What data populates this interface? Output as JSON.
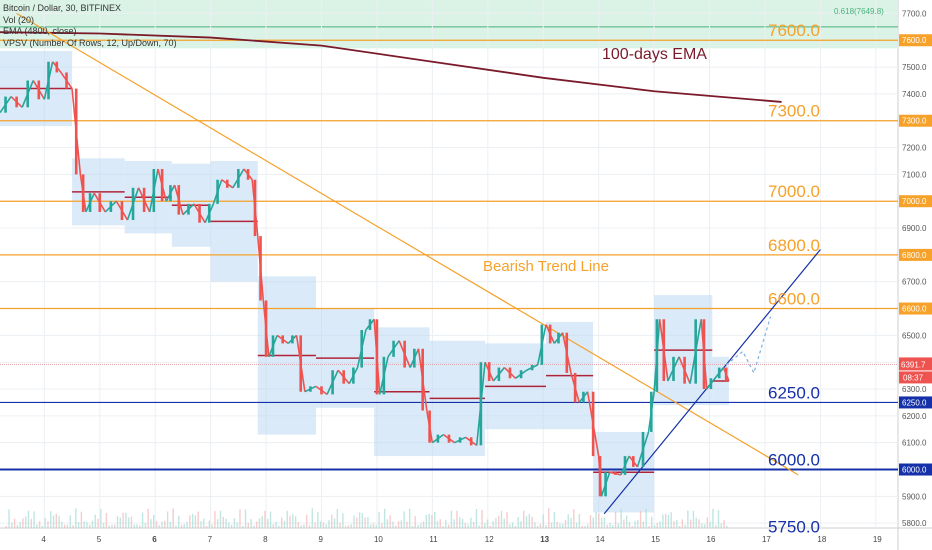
{
  "legend": {
    "title": "Bitcoin / Dollar, 30, BITFINEX",
    "vol": "Vol (20)",
    "ema": "EMA (4800, close)",
    "vpsv": "VPSV (Number Of Rows, 12, Up/Down, 70)"
  },
  "colors": {
    "orange": "#f6a12a",
    "blue": "#1530a8",
    "ema": "#7a1a2a",
    "up": "#26a69a",
    "down": "#ef5350",
    "profile": "#bcd8f2",
    "fib_band": "#d7f2e3"
  },
  "chart_data": {
    "type": "candlestick",
    "title": "Bitcoin / Dollar, 30, BITFINEX",
    "ylim": [
      5700,
      7750
    ],
    "y_ticks": [
      5800,
      5900,
      6000,
      6100,
      6200,
      6300,
      6400,
      6500,
      6600,
      6700,
      6800,
      6900,
      7000,
      7100,
      7200,
      7300,
      7400,
      7500,
      7600,
      7700
    ],
    "x_ticks": [
      "4",
      "5",
      "6",
      "7",
      "8",
      "9",
      "10",
      "11",
      "12",
      "13",
      "14",
      "15",
      "16",
      "17",
      "18",
      "19"
    ],
    "x_range_days": [
      3.2,
      19.4
    ],
    "fib_label": "0.618(7649.8)",
    "fib_value": 7649.8,
    "current_price": "6391.7",
    "countdown": "08:37",
    "levels": [
      {
        "value": 7600,
        "label": "7600.0",
        "color": "orange"
      },
      {
        "value": 7300,
        "label": "7300.0",
        "color": "orange"
      },
      {
        "value": 7000,
        "label": "7000.0",
        "color": "orange"
      },
      {
        "value": 6800,
        "label": "6800.0",
        "color": "orange"
      },
      {
        "value": 6600,
        "label": "6600.0",
        "color": "orange"
      },
      {
        "value": 6250,
        "label": "6250.0",
        "color": "blue"
      },
      {
        "value": 6000,
        "label": "6000.0",
        "color": "blue"
      },
      {
        "value": 5750,
        "label": "5750.0",
        "color": "blue"
      }
    ],
    "annotations": {
      "ema": "100-days EMA",
      "trend": "Bearish Trend Line"
    },
    "ema_line": [
      [
        3.2,
        7630
      ],
      [
        5,
        7625
      ],
      [
        7,
        7610
      ],
      [
        9,
        7580
      ],
      [
        11,
        7520
      ],
      [
        13,
        7460
      ],
      [
        15,
        7410
      ],
      [
        17.3,
        7370
      ]
    ],
    "bearish_trend_line": [
      [
        3.5,
        7700
      ],
      [
        17.6,
        5980
      ]
    ],
    "support_trend_line": [
      [
        14.1,
        5835
      ],
      [
        18.0,
        6820
      ]
    ],
    "projection_path": [
      [
        16.3,
        6390
      ],
      [
        16.6,
        6440
      ],
      [
        16.8,
        6360
      ],
      [
        17.0,
        6500
      ],
      [
        17.1,
        6570
      ]
    ],
    "price_path": [
      [
        3.2,
        7330
      ],
      [
        3.4,
        7390
      ],
      [
        3.6,
        7350
      ],
      [
        3.8,
        7450
      ],
      [
        4.0,
        7380
      ],
      [
        4.15,
        7520
      ],
      [
        4.3,
        7480
      ],
      [
        4.5,
        7420
      ],
      [
        4.65,
        7100
      ],
      [
        4.75,
        6960
      ],
      [
        4.9,
        7030
      ],
      [
        5.1,
        6960
      ],
      [
        5.3,
        7000
      ],
      [
        5.5,
        6930
      ],
      [
        5.7,
        7050
      ],
      [
        5.9,
        6960
      ],
      [
        6.05,
        7120
      ],
      [
        6.2,
        7000
      ],
      [
        6.35,
        7060
      ],
      [
        6.5,
        6950
      ],
      [
        6.7,
        6990
      ],
      [
        6.9,
        6920
      ],
      [
        7.05,
        6990
      ],
      [
        7.2,
        7080
      ],
      [
        7.4,
        7050
      ],
      [
        7.6,
        7120
      ],
      [
        7.75,
        7080
      ],
      [
        7.85,
        6870
      ],
      [
        7.95,
        6630
      ],
      [
        8.05,
        6420
      ],
      [
        8.2,
        6500
      ],
      [
        8.4,
        6470
      ],
      [
        8.55,
        6500
      ],
      [
        8.7,
        6290
      ],
      [
        8.9,
        6310
      ],
      [
        9.1,
        6280
      ],
      [
        9.3,
        6370
      ],
      [
        9.5,
        6320
      ],
      [
        9.65,
        6380
      ],
      [
        9.8,
        6520
      ],
      [
        9.95,
        6560
      ],
      [
        10.05,
        6280
      ],
      [
        10.2,
        6420
      ],
      [
        10.4,
        6480
      ],
      [
        10.6,
        6380
      ],
      [
        10.75,
        6450
      ],
      [
        10.9,
        6220
      ],
      [
        11.0,
        6100
      ],
      [
        11.2,
        6130
      ],
      [
        11.4,
        6100
      ],
      [
        11.6,
        6120
      ],
      [
        11.8,
        6090
      ],
      [
        11.95,
        6400
      ],
      [
        12.1,
        6330
      ],
      [
        12.3,
        6380
      ],
      [
        12.5,
        6340
      ],
      [
        12.7,
        6370
      ],
      [
        12.9,
        6390
      ],
      [
        13.05,
        6540
      ],
      [
        13.2,
        6470
      ],
      [
        13.35,
        6510
      ],
      [
        13.5,
        6360
      ],
      [
        13.65,
        6250
      ],
      [
        13.8,
        6290
      ],
      [
        14.0,
        6050
      ],
      [
        14.05,
        5900
      ],
      [
        14.2,
        5990
      ],
      [
        14.4,
        5980
      ],
      [
        14.55,
        6050
      ],
      [
        14.7,
        6010
      ],
      [
        14.9,
        6140
      ],
      [
        15.0,
        6290
      ],
      [
        15.1,
        6560
      ],
      [
        15.25,
        6330
      ],
      [
        15.45,
        6420
      ],
      [
        15.65,
        6320
      ],
      [
        15.85,
        6560
      ],
      [
        15.95,
        6300
      ],
      [
        16.1,
        6340
      ],
      [
        16.25,
        6380
      ],
      [
        16.35,
        6330
      ]
    ],
    "profile_boxes": [
      [
        3.2,
        4.5,
        7280,
        7560
      ],
      [
        4.5,
        5.45,
        6910,
        7160
      ],
      [
        5.45,
        6.3,
        6880,
        7150
      ],
      [
        6.3,
        7.0,
        6830,
        7140
      ],
      [
        7.0,
        7.85,
        6700,
        7150
      ],
      [
        7.85,
        8.9,
        6130,
        6720
      ],
      [
        8.9,
        9.95,
        6230,
        6600
      ],
      [
        9.95,
        10.95,
        6050,
        6530
      ],
      [
        10.95,
        11.95,
        6050,
        6480
      ],
      [
        11.95,
        13.05,
        6150,
        6470
      ],
      [
        13.05,
        13.9,
        6150,
        6550
      ],
      [
        13.9,
        15.0,
        5840,
        6140
      ],
      [
        15.0,
        16.05,
        6240,
        6650
      ],
      [
        16.05,
        16.35,
        6240,
        6420
      ]
    ]
  }
}
